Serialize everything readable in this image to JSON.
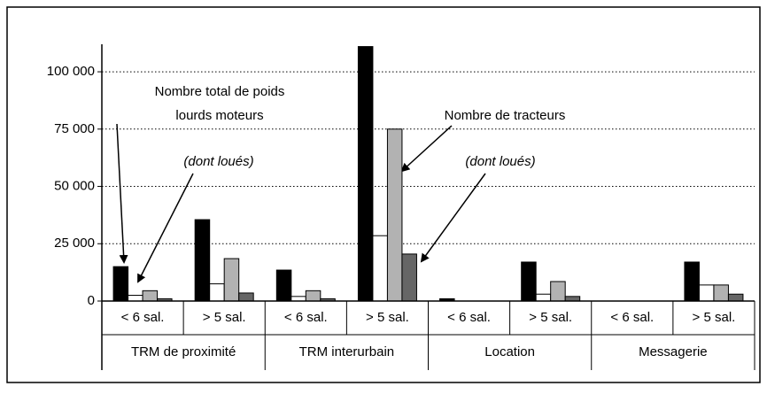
{
  "chart_data": {
    "type": "bar",
    "categories": [
      "< 6 sal.",
      "> 5 sal.",
      "< 6 sal.",
      "> 5 sal.",
      "< 6 sal.",
      "> 5 sal.",
      "< 6 sal.",
      "> 5 sal."
    ],
    "groups": [
      "TRM de proximité",
      "TRM interurbain",
      "Location",
      "Messagerie"
    ],
    "series": [
      {
        "color": "#000000",
        "values": [
          15000,
          35500,
          13500,
          111000,
          1000,
          17000,
          0,
          17000
        ]
      },
      {
        "color": "#ffffff",
        "values": [
          2500,
          7500,
          2000,
          28500,
          0,
          3000,
          0,
          7000
        ]
      },
      {
        "color": "#b2b2b2",
        "values": [
          4500,
          18500,
          4500,
          75000,
          0,
          8500,
          0,
          7000
        ]
      },
      {
        "color": "#666666",
        "values": [
          1000,
          3500,
          1000,
          20500,
          0,
          2000,
          0,
          3000
        ]
      }
    ],
    "ylim": [
      0,
      112000
    ],
    "yticks": [
      0,
      {
        "value": 25000,
        "label": "25 000"
      },
      {
        "value": 50000,
        "label": "50 000"
      },
      {
        "value": 75000,
        "label": "75 000"
      },
      {
        "value": 100000,
        "label": "100 000"
      }
    ],
    "grid": true,
    "annotations": [
      {
        "lines": [
          "Nombre total de poids",
          "lourds moteurs"
        ]
      },
      {
        "lines": [
          "(dont loués)"
        ]
      },
      {
        "lines": [
          "Nombre de tracteurs"
        ]
      },
      {
        "lines": [
          "(dont loués)"
        ]
      }
    ]
  }
}
